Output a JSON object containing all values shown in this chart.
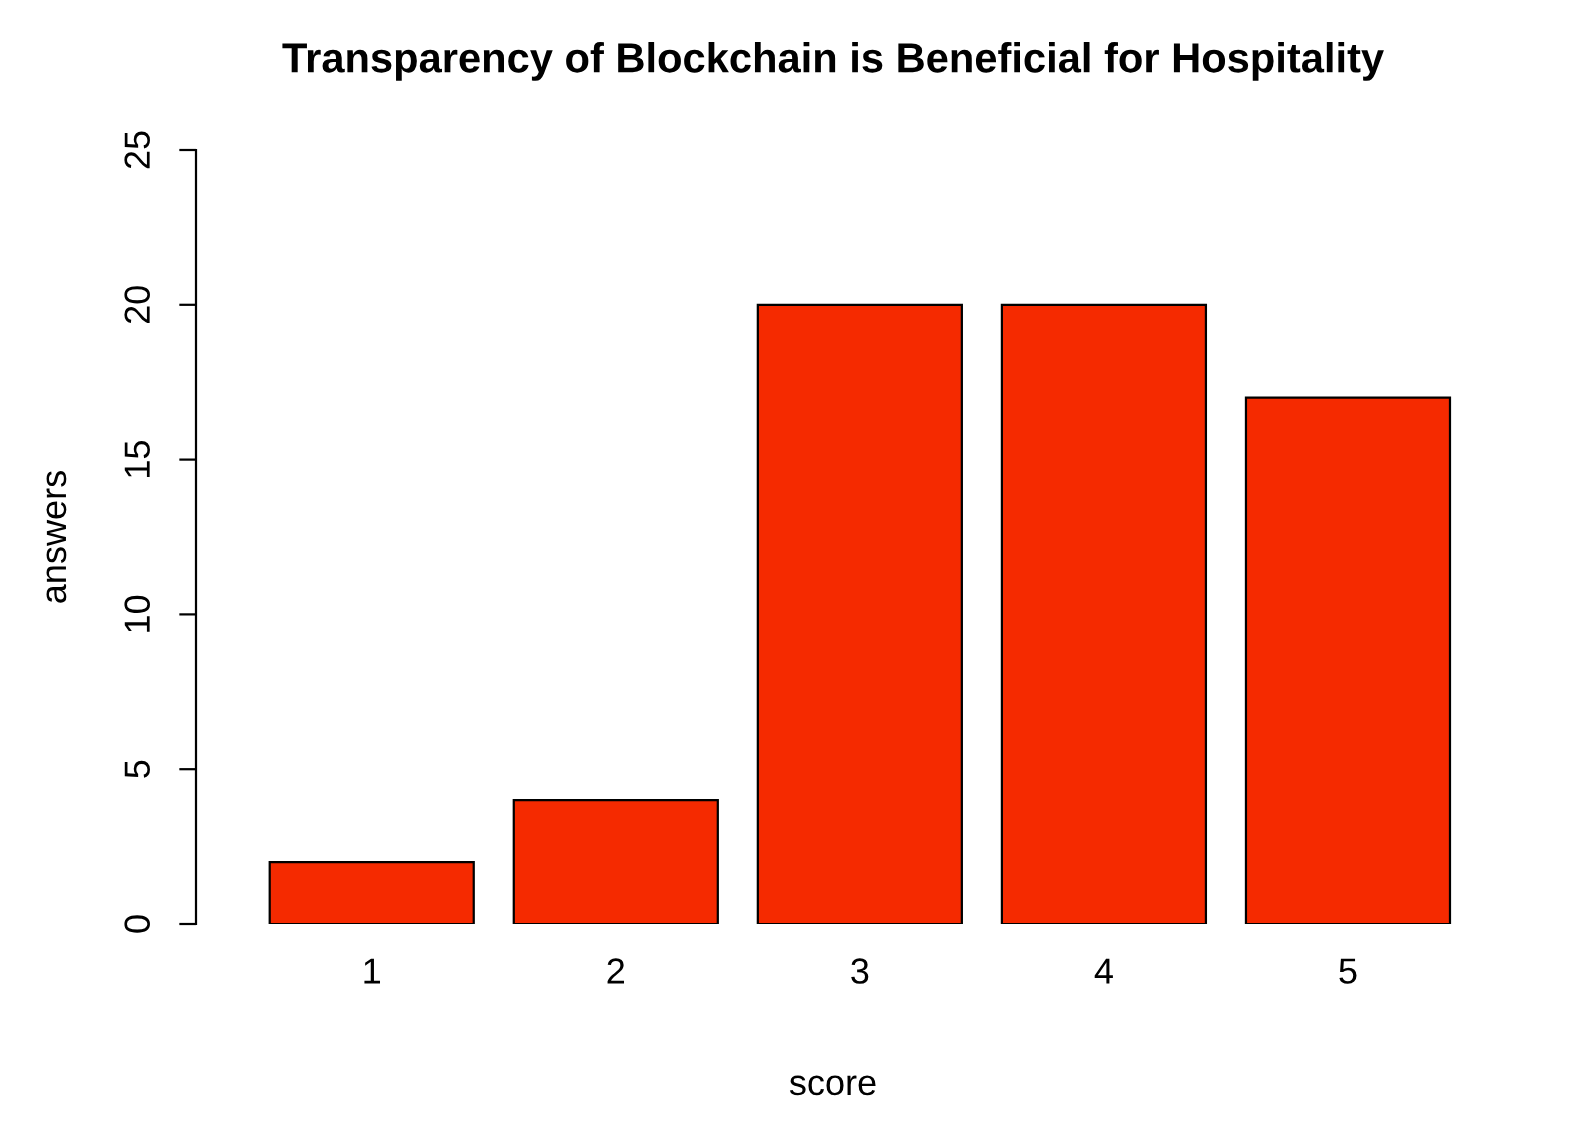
{
  "chart_data": {
    "type": "bar",
    "title": "Transparency of Blockchain is Beneficial for Hospitality",
    "xlabel": "score",
    "ylabel": "answers",
    "categories": [
      "1",
      "2",
      "3",
      "4",
      "5"
    ],
    "values": [
      2,
      4,
      20,
      20,
      17
    ],
    "color": "#f52a00",
    "ylim": [
      0,
      25
    ],
    "yticks": [
      0,
      5,
      10,
      15,
      20,
      25
    ],
    "grid": false
  }
}
